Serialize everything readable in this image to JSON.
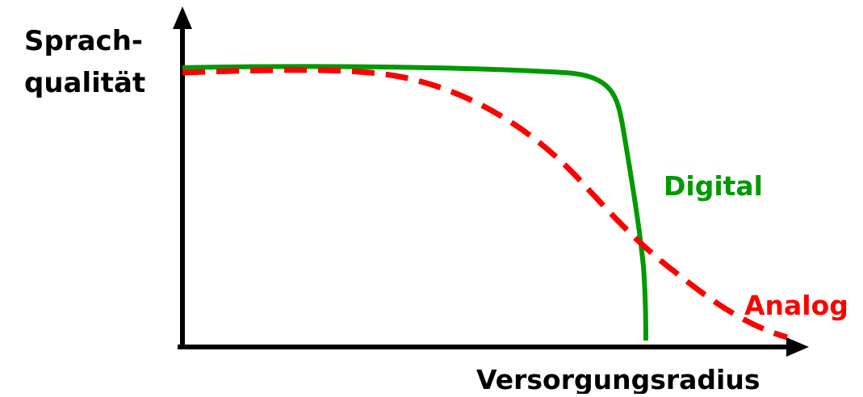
{
  "y_axis_label": [
    "Sprach-",
    "qualität"
  ],
  "x_axis_label": "Versorgungsradius",
  "curves": [
    {
      "label": "Digital"
    },
    {
      "label": "Analog"
    }
  ]
}
